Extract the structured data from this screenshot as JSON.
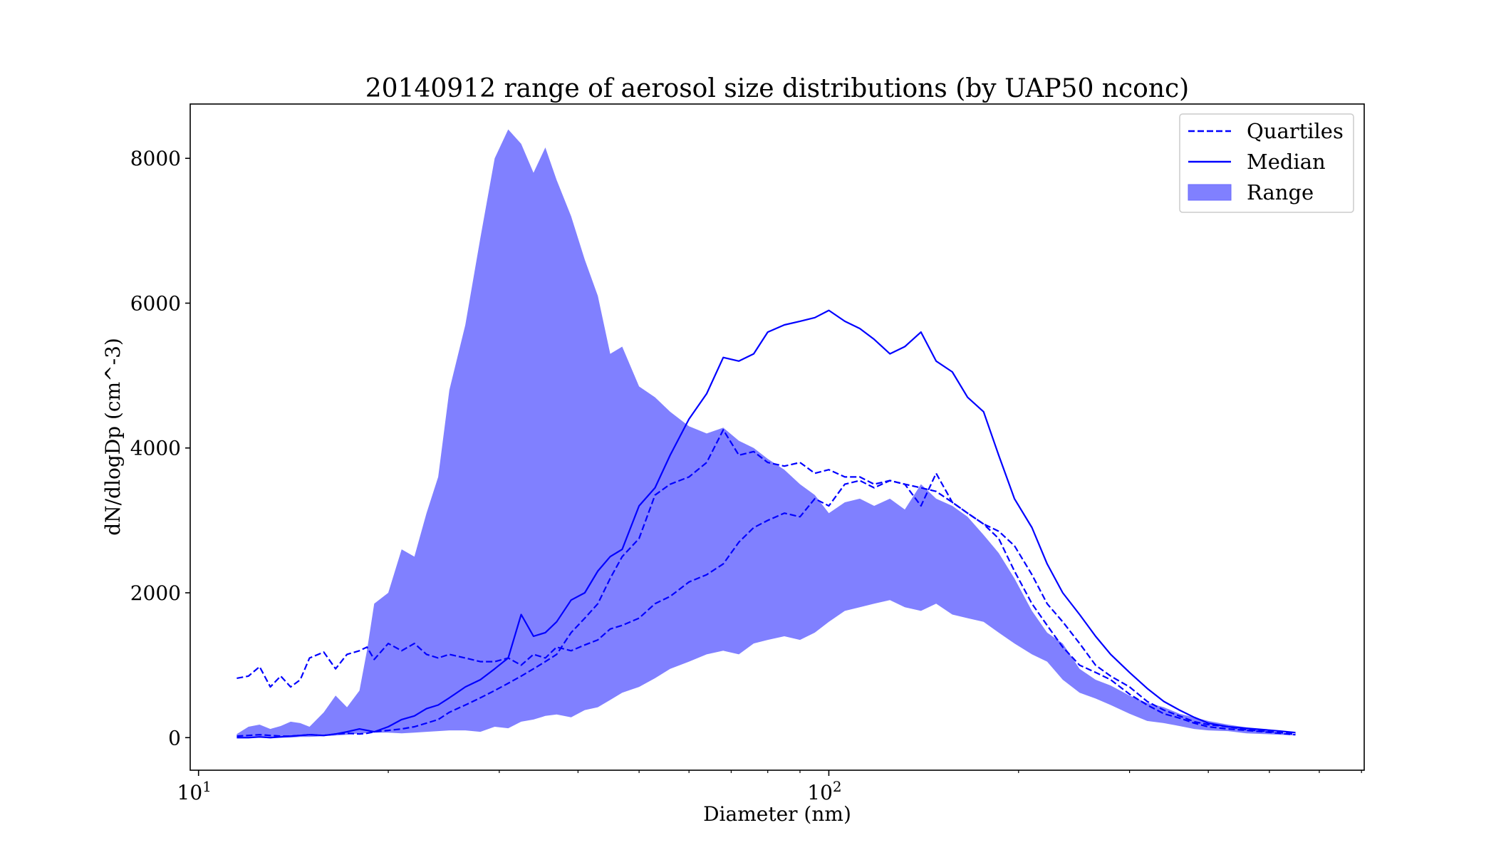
{
  "chart_data": {
    "type": "area",
    "title": "20140912 range of aerosol size distributions (by UAP50 nconc)",
    "xlabel": "Diameter (nm)",
    "ylabel": "dN/dlogDp (cm^-3)",
    "xscale": "log",
    "xlim": [
      9.7,
      707
    ],
    "ylim": [
      -450,
      8750
    ],
    "x_major_ticks": [
      {
        "value": 10,
        "base": "10",
        "exp": "1"
      },
      {
        "value": 100,
        "base": "10",
        "exp": "2"
      }
    ],
    "y_ticks": [
      0,
      2000,
      4000,
      6000,
      8000
    ],
    "y_tick_labels": [
      "0",
      "2000",
      "4000",
      "6000",
      "8000"
    ],
    "grid": false,
    "legend_position": "top-right",
    "colors": {
      "series": "#0000ff",
      "fill": "#8080ff"
    },
    "series": [
      {
        "name": "Range",
        "style": "fill",
        "x_upper": [
          11.5,
          12.0,
          12.5,
          13.0,
          13.5,
          14.0,
          14.5,
          15.0,
          15.8,
          16.5,
          17.2,
          18.0,
          18.5,
          19.0,
          20.0,
          21.0,
          22.0,
          23.0,
          24.0,
          25.0,
          26.5,
          28.0,
          29.5,
          31.0,
          32.5,
          34.0,
          35.5,
          37.0,
          39.0,
          41.0,
          43.0,
          45.0,
          47.0,
          50.0,
          53.0,
          56.0,
          60.0,
          64.0,
          68.0,
          72.0,
          76.0,
          80.0,
          85.0,
          90.0,
          95.0,
          100.0,
          106.0,
          112.0,
          118.0,
          125.0,
          132.0,
          140.0,
          148.0,
          157.0,
          166.0,
          176.0,
          186.0,
          197.0,
          210.0,
          222.0,
          235.0,
          250.0,
          265.0,
          280.0,
          300.0,
          320.0,
          340.0,
          360.0,
          380.0,
          400.0,
          430.0,
          460.0,
          490.0,
          520.0,
          550.0
        ],
        "y_upper": [
          50,
          150,
          180,
          120,
          160,
          220,
          200,
          150,
          350,
          580,
          420,
          650,
          1200,
          1850,
          2000,
          2600,
          2500,
          3100,
          3600,
          4800,
          5700,
          6900,
          8000,
          8400,
          8200,
          7800,
          8150,
          7700,
          7200,
          6600,
          6100,
          5300,
          5400,
          4850,
          4700,
          4500,
          4300,
          4200,
          4280,
          4100,
          4000,
          3850,
          3700,
          3500,
          3350,
          3100,
          3250,
          3300,
          3200,
          3300,
          3150,
          3500,
          3300,
          3200,
          3050,
          2800,
          2550,
          2200,
          1750,
          1450,
          1300,
          950,
          800,
          720,
          580,
          480,
          420,
          330,
          280,
          230,
          180,
          140,
          100,
          70,
          40
        ],
        "x_lower": [
          11.5,
          12.0,
          12.5,
          13.0,
          13.5,
          14.0,
          14.5,
          15.0,
          15.8,
          16.5,
          17.2,
          18.0,
          18.5,
          19.0,
          20.0,
          21.0,
          22.0,
          23.0,
          24.0,
          25.0,
          26.5,
          28.0,
          29.5,
          31.0,
          32.5,
          34.0,
          35.5,
          37.0,
          39.0,
          41.0,
          43.0,
          45.0,
          47.0,
          50.0,
          53.0,
          56.0,
          60.0,
          64.0,
          68.0,
          72.0,
          76.0,
          80.0,
          85.0,
          90.0,
          95.0,
          100.0,
          106.0,
          112.0,
          118.0,
          125.0,
          132.0,
          140.0,
          148.0,
          157.0,
          166.0,
          176.0,
          186.0,
          197.0,
          210.0,
          222.0,
          235.0,
          250.0,
          265.0,
          280.0,
          300.0,
          320.0,
          340.0,
          360.0,
          380.0,
          400.0,
          430.0,
          460.0,
          490.0,
          520.0,
          550.0
        ],
        "y_lower": [
          0,
          0,
          0,
          0,
          0,
          0,
          10,
          10,
          20,
          30,
          40,
          60,
          60,
          70,
          70,
          60,
          70,
          80,
          90,
          100,
          100,
          80,
          150,
          130,
          220,
          250,
          300,
          320,
          280,
          380,
          420,
          520,
          620,
          700,
          820,
          950,
          1050,
          1150,
          1200,
          1150,
          1300,
          1350,
          1400,
          1350,
          1450,
          1600,
          1750,
          1800,
          1850,
          1900,
          1800,
          1750,
          1850,
          1700,
          1650,
          1600,
          1450,
          1300,
          1150,
          1050,
          800,
          620,
          540,
          450,
          330,
          230,
          200,
          160,
          120,
          100,
          90,
          60,
          50,
          40,
          30
        ]
      },
      {
        "name": "Quartiles",
        "style": "dashed",
        "x": [
          11.5,
          12.0,
          12.5,
          13.0,
          13.5,
          14.0,
          14.5,
          15.0,
          15.8,
          16.5,
          17.2,
          18.0,
          18.5,
          19.0,
          20.0,
          21.0,
          22.0,
          23.0,
          24.0,
          25.0,
          26.5,
          28.0,
          29.5,
          31.0,
          32.5,
          34.0,
          35.5,
          37.0,
          39.0,
          41.0,
          43.0,
          45.0,
          47.0,
          50.0,
          53.0,
          56.0,
          60.0,
          64.0,
          68.0,
          72.0,
          76.0,
          80.0,
          85.0,
          90.0,
          95.0,
          100.0,
          106.0,
          112.0,
          118.0,
          125.0,
          132.0,
          140.0,
          148.0,
          157.0,
          166.0,
          176.0,
          186.0,
          197.0,
          210.0,
          222.0,
          235.0,
          250.0,
          265.0,
          280.0,
          300.0,
          320.0,
          340.0,
          360.0,
          380.0,
          400.0,
          430.0,
          460.0,
          490.0,
          520.0,
          550.0
        ],
        "y": [
          820,
          850,
          980,
          700,
          850,
          700,
          800,
          1100,
          1180,
          950,
          1150,
          1200,
          1250,
          1080,
          1300,
          1200,
          1300,
          1150,
          1100,
          1150,
          1100,
          1050,
          1050,
          1100,
          1000,
          1150,
          1100,
          1250,
          1200,
          1280,
          1350,
          1500,
          1550,
          1650,
          1850,
          1950,
          2150,
          2250,
          2400,
          2700,
          2900,
          3000,
          3100,
          3050,
          3300,
          3200,
          3500,
          3550,
          3450,
          3550,
          3500,
          3450,
          3400,
          3250,
          3100,
          2950,
          2850,
          2650,
          2250,
          1850,
          1600,
          1300,
          1000,
          850,
          700,
          500,
          380,
          300,
          220,
          180,
          150,
          110,
          90,
          70,
          50
        ]
      },
      {
        "name": "Quartiles",
        "style": "dashed",
        "x": [
          11.5,
          12.0,
          12.5,
          13.0,
          13.5,
          14.0,
          14.5,
          15.0,
          15.8,
          16.5,
          17.2,
          18.0,
          18.5,
          19.0,
          20.0,
          21.0,
          22.0,
          23.0,
          24.0,
          25.0,
          26.5,
          28.0,
          29.5,
          31.0,
          32.5,
          34.0,
          35.5,
          37.0,
          39.0,
          41.0,
          43.0,
          45.0,
          47.0,
          50.0,
          53.0,
          56.0,
          60.0,
          64.0,
          68.0,
          72.0,
          76.0,
          80.0,
          85.0,
          90.0,
          95.0,
          100.0,
          106.0,
          112.0,
          118.0,
          125.0,
          132.0,
          140.0,
          148.0,
          157.0,
          166.0,
          176.0,
          186.0,
          197.0,
          210.0,
          222.0,
          235.0,
          250.0,
          265.0,
          280.0,
          300.0,
          320.0,
          340.0,
          360.0,
          380.0,
          400.0,
          430.0,
          460.0,
          490.0,
          520.0,
          550.0
        ],
        "y": [
          20,
          30,
          40,
          30,
          20,
          20,
          30,
          40,
          30,
          50,
          60,
          50,
          60,
          80,
          100,
          120,
          150,
          200,
          250,
          350,
          450,
          550,
          650,
          750,
          850,
          950,
          1050,
          1150,
          1450,
          1650,
          1850,
          2200,
          2500,
          2750,
          3350,
          3500,
          3600,
          3800,
          4250,
          3900,
          3950,
          3800,
          3750,
          3800,
          3650,
          3700,
          3600,
          3600,
          3500,
          3550,
          3500,
          3200,
          3650,
          3250,
          3100,
          2950,
          2750,
          2300,
          1850,
          1550,
          1250,
          1000,
          900,
          800,
          600,
          450,
          330,
          270,
          200,
          150,
          120,
          100,
          80,
          60,
          40
        ]
      },
      {
        "name": "Median",
        "style": "solid",
        "x": [
          11.5,
          12.0,
          12.5,
          13.0,
          13.5,
          14.0,
          14.5,
          15.0,
          15.8,
          16.5,
          17.2,
          18.0,
          18.5,
          19.0,
          20.0,
          21.0,
          22.0,
          23.0,
          24.0,
          25.0,
          26.5,
          28.0,
          29.5,
          31.0,
          32.5,
          34.0,
          35.5,
          37.0,
          39.0,
          41.0,
          43.0,
          45.0,
          47.0,
          50.0,
          53.0,
          56.0,
          60.0,
          64.0,
          68.0,
          72.0,
          76.0,
          80.0,
          85.0,
          90.0,
          95.0,
          100.0,
          106.0,
          112.0,
          118.0,
          125.0,
          132.0,
          140.0,
          148.0,
          157.0,
          166.0,
          176.0,
          186.0,
          197.0,
          210.0,
          222.0,
          235.0,
          250.0,
          265.0,
          280.0,
          300.0,
          320.0,
          340.0,
          360.0,
          380.0,
          400.0,
          430.0,
          460.0,
          490.0,
          520.0,
          550.0
        ],
        "y": [
          0,
          0,
          10,
          0,
          10,
          20,
          30,
          40,
          30,
          50,
          80,
          120,
          100,
          80,
          150,
          250,
          300,
          400,
          450,
          550,
          700,
          800,
          950,
          1100,
          1700,
          1400,
          1450,
          1600,
          1900,
          2000,
          2300,
          2500,
          2600,
          3200,
          3450,
          3900,
          4400,
          4750,
          5250,
          5200,
          5300,
          5600,
          5700,
          5750,
          5800,
          5900,
          5750,
          5650,
          5500,
          5300,
          5400,
          5600,
          5200,
          5050,
          4700,
          4500,
          3900,
          3300,
          2900,
          2400,
          2000,
          1700,
          1400,
          1150,
          900,
          680,
          500,
          380,
          280,
          200,
          150,
          130,
          110,
          90,
          70
        ]
      }
    ]
  },
  "legend": [
    {
      "label": "Quartiles",
      "style": "dashed"
    },
    {
      "label": "Median",
      "style": "solid"
    },
    {
      "label": "Range",
      "style": "fill"
    }
  ]
}
